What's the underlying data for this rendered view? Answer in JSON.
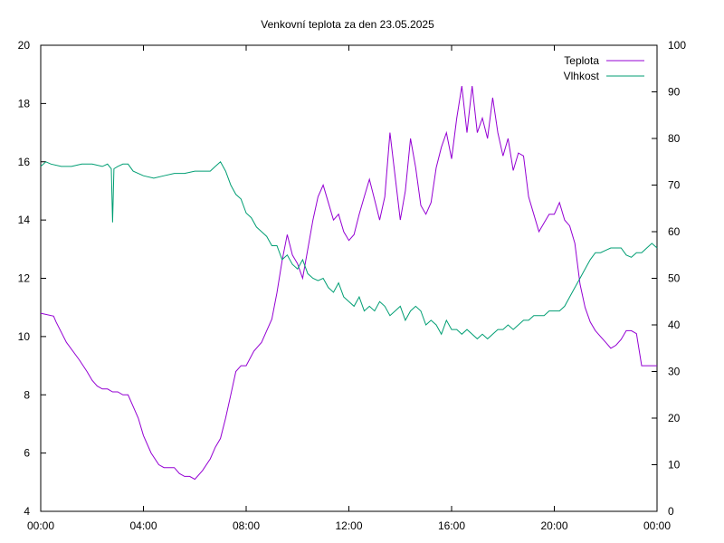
{
  "chart_data": {
    "type": "line",
    "title": "Venkovní teplota za den 23.05.2025",
    "x_ticks": [
      "00:00",
      "04:00",
      "08:00",
      "12:00",
      "16:00",
      "20:00",
      "00:00"
    ],
    "x_range_hours": [
      0,
      24
    ],
    "y_left_ticks": [
      4,
      6,
      8,
      10,
      12,
      14,
      16,
      18,
      20
    ],
    "y_left_range": [
      4,
      20
    ],
    "y_right_ticks": [
      0,
      10,
      20,
      30,
      40,
      50,
      60,
      70,
      80,
      90,
      100
    ],
    "y_right_range": [
      0,
      100
    ],
    "grid": false,
    "legend_position": "top-right",
    "series": [
      {
        "name": "Teplota",
        "axis": "left",
        "color": "#9400d3",
        "x": [
          0,
          0.5,
          0.6,
          1.0,
          1.5,
          1.8,
          2.0,
          2.2,
          2.4,
          2.6,
          2.8,
          3.0,
          3.2,
          3.4,
          3.6,
          3.8,
          4.0,
          4.3,
          4.6,
          4.8,
          5.0,
          5.2,
          5.4,
          5.6,
          5.8,
          6.0,
          6.3,
          6.6,
          6.8,
          7.0,
          7.2,
          7.4,
          7.6,
          7.8,
          8.0,
          8.3,
          8.6,
          8.8,
          9.0,
          9.2,
          9.4,
          9.6,
          9.8,
          10.0,
          10.2,
          10.4,
          10.6,
          10.8,
          11.0,
          11.2,
          11.4,
          11.6,
          11.8,
          12.0,
          12.2,
          12.4,
          12.6,
          12.8,
          13.0,
          13.2,
          13.4,
          13.6,
          13.8,
          14.0,
          14.2,
          14.4,
          14.6,
          14.8,
          15.0,
          15.2,
          15.4,
          15.6,
          15.8,
          16.0,
          16.2,
          16.4,
          16.6,
          16.8,
          17.0,
          17.2,
          17.4,
          17.6,
          17.8,
          18.0,
          18.2,
          18.4,
          18.6,
          18.8,
          19.0,
          19.2,
          19.4,
          19.6,
          19.8,
          20.0,
          20.2,
          20.4,
          20.6,
          20.8,
          21.0,
          21.2,
          21.4,
          21.6,
          21.8,
          22.0,
          22.2,
          22.4,
          22.6,
          22.8,
          23.0,
          23.2,
          23.4,
          23.6,
          24.0
        ],
        "y": [
          10.8,
          10.7,
          10.5,
          9.8,
          9.2,
          8.8,
          8.5,
          8.3,
          8.2,
          8.2,
          8.1,
          8.1,
          8.0,
          8.0,
          7.6,
          7.2,
          6.6,
          6.0,
          5.6,
          5.5,
          5.5,
          5.5,
          5.3,
          5.2,
          5.2,
          5.1,
          5.4,
          5.8,
          6.2,
          6.5,
          7.2,
          8.0,
          8.8,
          9.0,
          9.0,
          9.5,
          9.8,
          10.2,
          10.6,
          11.5,
          12.6,
          13.5,
          12.8,
          12.5,
          12.0,
          13.0,
          14.0,
          14.8,
          15.2,
          14.6,
          14.0,
          14.2,
          13.6,
          13.3,
          13.5,
          14.2,
          14.8,
          15.4,
          14.7,
          14.0,
          14.8,
          17.0,
          15.5,
          14.0,
          15.0,
          16.8,
          15.8,
          14.5,
          14.2,
          14.6,
          15.8,
          16.5,
          17.0,
          16.1,
          17.5,
          18.6,
          17.0,
          18.6,
          17.0,
          17.5,
          16.8,
          18.2,
          17.0,
          16.2,
          16.8,
          15.7,
          16.3,
          16.2,
          14.8,
          14.2,
          13.6,
          13.9,
          14.2,
          14.2,
          14.6,
          14.0,
          13.8,
          13.2,
          11.8,
          11.0,
          10.5,
          10.2,
          10.0,
          9.8,
          9.6,
          9.7,
          9.9,
          10.2,
          10.2,
          10.1,
          9.0,
          9.0,
          9.0
        ]
      },
      {
        "name": "Vlhkost",
        "axis": "right",
        "color": "#009e73",
        "x": [
          0,
          0.2,
          0.4,
          0.8,
          1.2,
          1.6,
          2.0,
          2.4,
          2.6,
          2.75,
          2.8,
          2.85,
          3.0,
          3.2,
          3.4,
          3.6,
          4.0,
          4.4,
          4.8,
          5.2,
          5.6,
          6.0,
          6.4,
          6.6,
          6.8,
          7.0,
          7.2,
          7.4,
          7.6,
          7.8,
          8.0,
          8.2,
          8.4,
          8.6,
          8.8,
          9.0,
          9.2,
          9.4,
          9.6,
          9.8,
          10.0,
          10.2,
          10.4,
          10.6,
          10.8,
          11.0,
          11.2,
          11.4,
          11.6,
          11.8,
          12.0,
          12.2,
          12.4,
          12.6,
          12.8,
          13.0,
          13.2,
          13.4,
          13.6,
          13.8,
          14.0,
          14.2,
          14.4,
          14.6,
          14.8,
          15.0,
          15.2,
          15.4,
          15.6,
          15.8,
          16.0,
          16.2,
          16.4,
          16.6,
          16.8,
          17.0,
          17.2,
          17.4,
          17.6,
          17.8,
          18.0,
          18.2,
          18.4,
          18.6,
          18.8,
          19.0,
          19.2,
          19.4,
          19.6,
          19.8,
          20.0,
          20.2,
          20.4,
          20.6,
          20.8,
          21.0,
          21.2,
          21.4,
          21.6,
          21.8,
          22.0,
          22.2,
          22.4,
          22.6,
          22.8,
          23.0,
          23.2,
          23.4,
          23.6,
          23.8,
          24.0
        ],
        "y": [
          74,
          75,
          74.5,
          74,
          74,
          74.5,
          74.5,
          74,
          74.5,
          73.5,
          62,
          73.5,
          74,
          74.5,
          74.5,
          73,
          72,
          71.5,
          72,
          72.5,
          72.5,
          73,
          73,
          73,
          74,
          75,
          73,
          70,
          68,
          67,
          64,
          63,
          61,
          60,
          59,
          57,
          57,
          54,
          55,
          53,
          52,
          54,
          51,
          50,
          49.5,
          50,
          48,
          47,
          49,
          46,
          45,
          44,
          46,
          43,
          44,
          43,
          45,
          44,
          42,
          43,
          44,
          41,
          43,
          44,
          43,
          40,
          41,
          40,
          38,
          41,
          39,
          39,
          38,
          39,
          38,
          37,
          38,
          37,
          38,
          39,
          39,
          40,
          39,
          40,
          41,
          41,
          42,
          42,
          42,
          43,
          43,
          43,
          44,
          46,
          48,
          50,
          52,
          54,
          55.5,
          55.5,
          56,
          56.5,
          56.5,
          56.5,
          55,
          54.5,
          55.5,
          55.5,
          56.5,
          57.5,
          56.5
        ]
      }
    ]
  }
}
